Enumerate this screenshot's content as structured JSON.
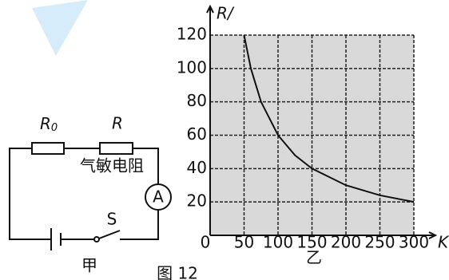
{
  "circuit": {
    "r0_symbol": "R",
    "r0_subscript": "0",
    "r_label": "R",
    "r_description": "气敏电阻",
    "ammeter": "A",
    "switch": "S",
    "caption": "甲"
  },
  "figure_caption": "图 12",
  "chart_data": {
    "type": "line",
    "caption": "乙",
    "y_label": "R/",
    "x_label": "K",
    "origin_label": "0",
    "x": [
      50,
      60,
      75,
      100,
      125,
      150,
      200,
      250,
      300
    ],
    "series": [
      {
        "color": "#111111",
        "values": [
          120,
          100,
          80,
          60,
          48,
          40,
          30,
          24,
          20
        ]
      }
    ],
    "xlim": [
      0,
      300
    ],
    "xticks": [
      50,
      100,
      150,
      200,
      250,
      300
    ],
    "ylim": [
      0,
      120
    ],
    "yticks": [
      20,
      40,
      60,
      80,
      100,
      120
    ],
    "grid": true
  }
}
